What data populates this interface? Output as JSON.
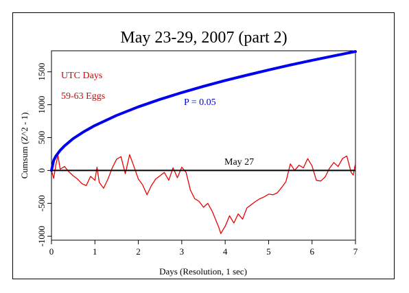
{
  "chart_data": {
    "type": "line",
    "title": "May 23-29, 2007 (part 2)",
    "xlabel": "Days (Resolution, 1 sec)",
    "ylabel": "Cumsum (Z^2 - 1)",
    "xlim": [
      0,
      7
    ],
    "ylim": [
      -1000,
      1800
    ],
    "x_ticks": [
      0,
      1,
      2,
      3,
      4,
      5,
      6,
      7
    ],
    "y_ticks": [
      -1000,
      -500,
      0,
      500,
      1000,
      1500
    ],
    "grid": false,
    "annotations": [
      {
        "text": "UTC Days",
        "color": "#dd0000"
      },
      {
        "text": "59-63 Eggs",
        "color": "#dd0000"
      },
      {
        "text": "P = 0.05",
        "color": "#0000cc"
      },
      {
        "text": "May 27",
        "color": "#000000"
      }
    ],
    "series": [
      {
        "color": "#0000ee",
        "x": [
          0,
          0.05,
          0.1,
          0.2,
          0.3,
          0.5,
          0.75,
          1,
          1.5,
          2,
          2.5,
          3,
          3.5,
          4,
          4.5,
          5,
          5.5,
          6,
          6.5,
          7
        ],
        "y": [
          0,
          153,
          216,
          306,
          374,
          484,
          592,
          684,
          837,
          967,
          1081,
          1184,
          1279,
          1368,
          1450,
          1529,
          1604,
          1675,
          1743,
          1809
        ]
      },
      {
        "color": "#ee0000",
        "x": [
          0,
          0.05,
          0.1,
          0.15,
          0.2,
          0.3,
          0.4,
          0.5,
          0.6,
          0.7,
          0.8,
          0.9,
          1,
          1.05,
          1.1,
          1.2,
          1.3,
          1.4,
          1.5,
          1.6,
          1.7,
          1.8,
          1.9,
          2,
          2.1,
          2.2,
          2.3,
          2.4,
          2.5,
          2.6,
          2.7,
          2.8,
          2.9,
          3,
          3.1,
          3.2,
          3.3,
          3.4,
          3.5,
          3.6,
          3.7,
          3.8,
          3.85,
          3.9,
          3.95,
          4,
          4.1,
          4.2,
          4.3,
          4.4,
          4.5,
          4.6,
          4.7,
          4.8,
          4.9,
          5,
          5.1,
          5.2,
          5.3,
          5.4,
          5.5,
          5.6,
          5.7,
          5.8,
          5.9,
          6,
          6.1,
          6.2,
          6.3,
          6.4,
          6.5,
          6.6,
          6.7,
          6.8,
          6.9,
          6.95,
          7
        ],
        "y": [
          0,
          -120,
          80,
          230,
          20,
          60,
          -20,
          -80,
          -130,
          -200,
          -230,
          -90,
          -150,
          50,
          -180,
          -270,
          -130,
          40,
          170,
          210,
          -50,
          240,
          60,
          -130,
          -220,
          -370,
          -230,
          -130,
          -80,
          -30,
          -150,
          40,
          -110,
          50,
          -30,
          -300,
          -430,
          -470,
          -560,
          -500,
          -620,
          -780,
          -860,
          -960,
          -900,
          -850,
          -690,
          -800,
          -660,
          -740,
          -570,
          -520,
          -470,
          -430,
          -400,
          -360,
          -370,
          -340,
          -260,
          -170,
          100,
          0,
          80,
          40,
          180,
          70,
          -150,
          -160,
          -100,
          30,
          120,
          60,
          180,
          220,
          -30,
          -70,
          110
        ]
      }
    ],
    "reference_line": {
      "y": 0,
      "label": "May 27",
      "color": "#000000"
    }
  }
}
